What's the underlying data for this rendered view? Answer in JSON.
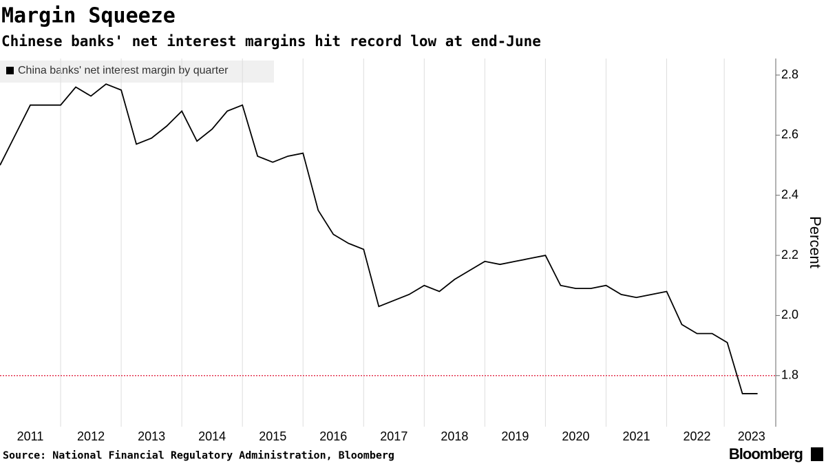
{
  "title": "Margin Squeeze",
  "subtitle": "Chinese banks' net interest margins hit record low at end-June",
  "source": "Source: National Financial Regulatory Administration, Bloomberg",
  "brand": "Bloomberg",
  "chart_data": {
    "type": "line",
    "x": [
      2011,
      2011.25,
      2011.5,
      2011.75,
      2012,
      2012.25,
      2012.5,
      2012.75,
      2013,
      2013.25,
      2013.5,
      2013.75,
      2014,
      2014.25,
      2014.5,
      2014.75,
      2015,
      2015.25,
      2015.5,
      2015.75,
      2016,
      2016.25,
      2016.5,
      2016.75,
      2017,
      2017.25,
      2017.5,
      2017.75,
      2018,
      2018.25,
      2018.5,
      2018.75,
      2019,
      2019.25,
      2019.5,
      2019.75,
      2020,
      2020.25,
      2020.5,
      2020.75,
      2021,
      2021.25,
      2021.5,
      2021.75,
      2022,
      2022.25,
      2022.5,
      2022.75,
      2023,
      2023.25,
      2023.5
    ],
    "series": [
      {
        "name": "China banks' net interest margin by quarter",
        "color": "#000000",
        "values": [
          2.5,
          2.6,
          2.7,
          2.7,
          2.7,
          2.76,
          2.73,
          2.77,
          2.75,
          2.57,
          2.59,
          2.63,
          2.68,
          2.58,
          2.62,
          2.68,
          2.7,
          2.53,
          2.51,
          2.53,
          2.54,
          2.35,
          2.27,
          2.24,
          2.22,
          2.03,
          2.05,
          2.07,
          2.1,
          2.08,
          2.12,
          2.15,
          2.18,
          2.17,
          2.18,
          2.19,
          2.2,
          2.1,
          2.09,
          2.09,
          2.1,
          2.07,
          2.06,
          2.07,
          2.08,
          1.97,
          1.94,
          1.94,
          1.91,
          1.74,
          1.74
        ]
      }
    ],
    "xlim": [
      2011,
      2023.8
    ],
    "xticks": [
      {
        "value": 2011.5,
        "label": "2011"
      },
      {
        "value": 2012.5,
        "label": "2012"
      },
      {
        "value": 2013.5,
        "label": "2013"
      },
      {
        "value": 2014.5,
        "label": "2014"
      },
      {
        "value": 2015.5,
        "label": "2015"
      },
      {
        "value": 2016.5,
        "label": "2016"
      },
      {
        "value": 2017.5,
        "label": "2017"
      },
      {
        "value": 2018.5,
        "label": "2018"
      },
      {
        "value": 2019.5,
        "label": "2019"
      },
      {
        "value": 2020.5,
        "label": "2020"
      },
      {
        "value": 2021.5,
        "label": "2021"
      },
      {
        "value": 2022.5,
        "label": "2022"
      },
      {
        "value": 2023.4,
        "label": "2023"
      }
    ],
    "ylim": [
      1.63,
      2.855
    ],
    "yticks": [
      1.8,
      {
        "value": 2,
        "label": "2.0"
      },
      2.2,
      2.4,
      2.6,
      2.8
    ],
    "ylabel": "Percent",
    "hline": {
      "value": 1.8,
      "color": "#e3344f"
    }
  }
}
